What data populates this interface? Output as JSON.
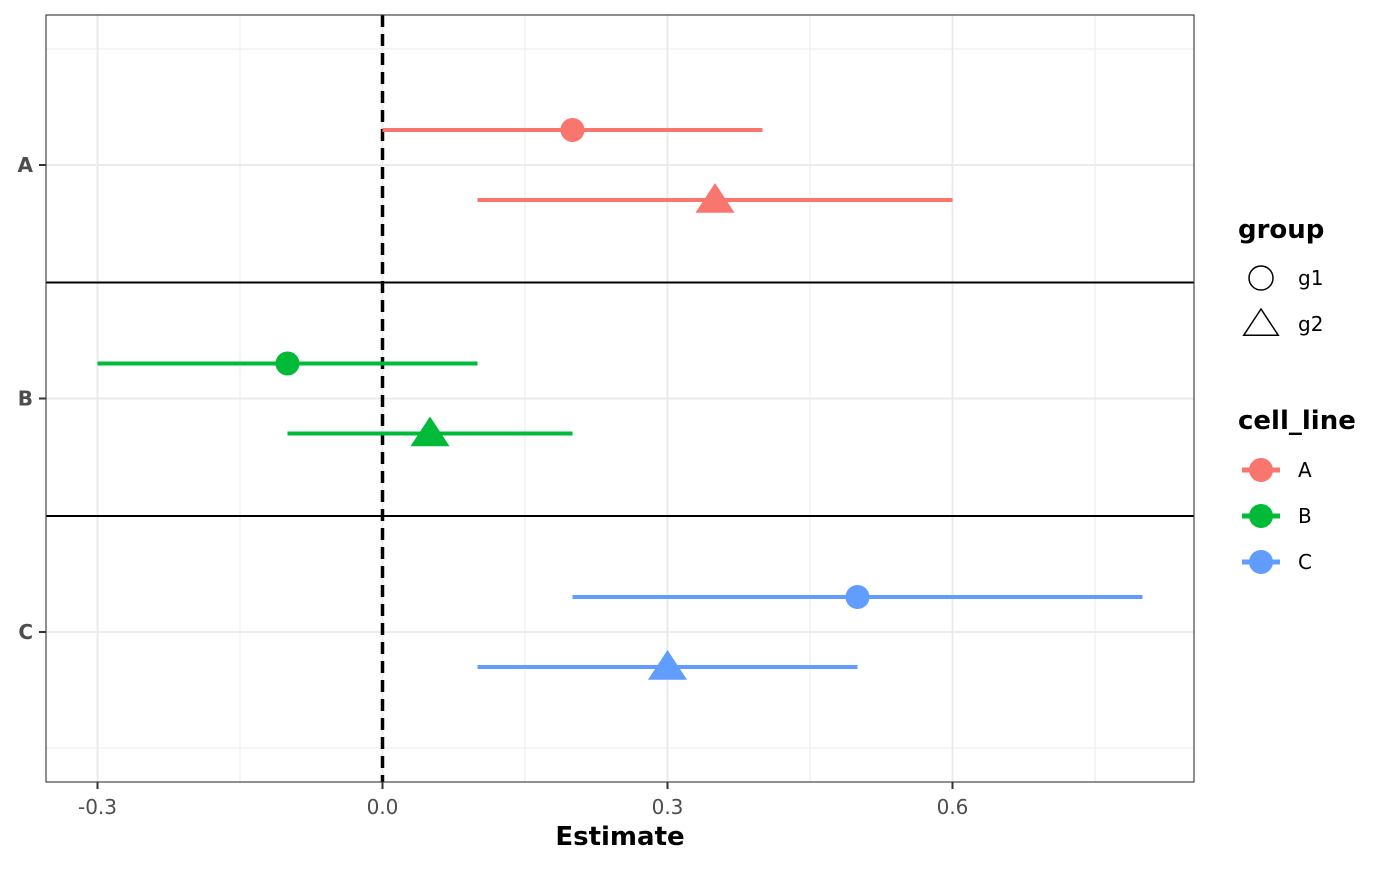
{
  "chart_data": {
    "type": "scatter",
    "xlabel": "Estimate",
    "ylabel": "",
    "xlim": [
      -0.35,
      0.86
    ],
    "x_ticks": [
      -0.3,
      0.0,
      0.3,
      0.6
    ],
    "x_tick_labels": [
      "-0.3",
      "0.0",
      "0.3",
      "0.6"
    ],
    "categories": [
      "A",
      "B",
      "C"
    ],
    "reference_line": {
      "x": 0,
      "style": "dashed"
    },
    "grid": true,
    "series": [
      {
        "name": "A",
        "color": "#F8766D",
        "points": [
          {
            "group": "g1",
            "estimate": 0.2,
            "lower": 0.0,
            "upper": 0.4
          },
          {
            "group": "g2",
            "estimate": 0.35,
            "lower": 0.1,
            "upper": 0.6
          }
        ]
      },
      {
        "name": "B",
        "color": "#00BA38",
        "points": [
          {
            "group": "g1",
            "estimate": -0.1,
            "lower": -0.3,
            "upper": 0.1
          },
          {
            "group": "g2",
            "estimate": 0.05,
            "lower": -0.1,
            "upper": 0.2
          }
        ]
      },
      {
        "name": "C",
        "color": "#619CFF",
        "points": [
          {
            "group": "g1",
            "estimate": 0.5,
            "lower": 0.2,
            "upper": 0.8
          },
          {
            "group": "g2",
            "estimate": 0.3,
            "lower": 0.1,
            "upper": 0.5
          }
        ]
      }
    ],
    "legends": [
      {
        "title": "group",
        "entries": [
          {
            "label": "g1",
            "shape": "circle"
          },
          {
            "label": "g2",
            "shape": "triangle"
          }
        ]
      },
      {
        "title": "cell_line",
        "entries": [
          {
            "label": "A",
            "color": "#F8766D"
          },
          {
            "label": "B",
            "color": "#00BA38"
          },
          {
            "label": "C",
            "color": "#619CFF"
          }
        ]
      }
    ],
    "legend_position": "right"
  }
}
